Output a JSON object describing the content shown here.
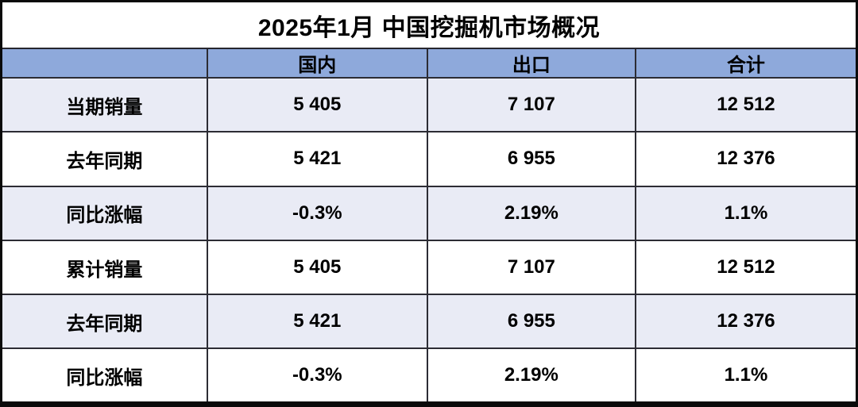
{
  "table": {
    "title": "2025年1月 中国挖掘机市场概况",
    "columns": [
      "",
      "国内",
      "出口",
      "合计"
    ],
    "rows": [
      {
        "label": "当期销量",
        "values": [
          "5 405",
          "7 107",
          "12 512"
        ]
      },
      {
        "label": "去年同期",
        "values": [
          "5 421",
          "6 955",
          "12 376"
        ]
      },
      {
        "label": "同比涨幅",
        "values": [
          "-0.3%",
          "2.19%",
          "1.1%"
        ]
      },
      {
        "label": "累计销量",
        "values": [
          "5 405",
          "7 107",
          "12 512"
        ]
      },
      {
        "label": "去年同期",
        "values": [
          "5 421",
          "6 955",
          "12 376"
        ]
      },
      {
        "label": "同比涨幅",
        "values": [
          "-0.3%",
          "2.19%",
          "1.1%"
        ]
      }
    ],
    "colors": {
      "header_bg": "#8EA9DB",
      "alt_row_bg": "#E9EBF5",
      "border": "#2c2c34",
      "outer_border": "#0a0a0a",
      "text": "#000000"
    }
  },
  "chart_data": {
    "type": "table",
    "title": "2025年1月 中国挖掘机市场概况",
    "columns": [
      "",
      "国内",
      "出口",
      "合计"
    ],
    "rows": [
      [
        "当期销量",
        "5 405",
        "7 107",
        "12 512"
      ],
      [
        "去年同期",
        "5 421",
        "6 955",
        "12 376"
      ],
      [
        "同比涨幅",
        "-0.3%",
        "2.19%",
        "1.1%"
      ],
      [
        "累计销量",
        "5 405",
        "7 107",
        "12 512"
      ],
      [
        "去年同期",
        "5 421",
        "6 955",
        "12 376"
      ],
      [
        "同比涨幅",
        "-0.3%",
        "2.19%",
        "1.1%"
      ]
    ],
    "notes": "Monthly excavator market overview table: current-period sales, same period last year, YoY change; cumulative sales, same period last year, YoY change — split by domestic (国内), export (出口), total (合计)."
  }
}
